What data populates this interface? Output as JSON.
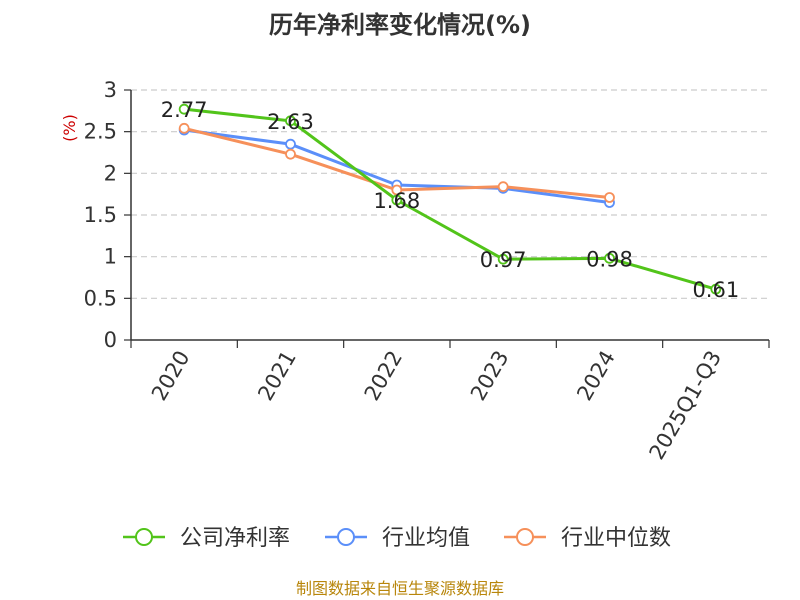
{
  "chart_data": {
    "type": "line",
    "title": "历年净利率变化情况(%)",
    "ylabel": "(%)",
    "xlabel": "",
    "categories": [
      "2020",
      "2021",
      "2022",
      "2023",
      "2024",
      "2025Q1-Q3"
    ],
    "ylim": [
      0,
      3
    ],
    "yticks": [
      0,
      0.5,
      1,
      1.5,
      2,
      2.5,
      3
    ],
    "ytick_labels": [
      "0",
      "0.5",
      "1",
      "1.5",
      "2",
      "2.5",
      "3"
    ],
    "grid": true,
    "legend_position": "bottom",
    "series": [
      {
        "name": "公司净利率",
        "color": "#52c41a",
        "values": [
          2.77,
          2.63,
          1.68,
          0.97,
          0.98,
          0.61
        ],
        "data_labels": [
          "2.77",
          "2.63",
          "1.68",
          "0.97",
          "0.98",
          "0.61"
        ]
      },
      {
        "name": "行业均值",
        "color": "#5b8ff9",
        "values": [
          2.52,
          2.35,
          1.86,
          1.82,
          1.65,
          null
        ]
      },
      {
        "name": "行业中位数",
        "color": "#f6905a",
        "values": [
          2.54,
          2.23,
          1.8,
          1.84,
          1.71,
          null
        ]
      }
    ]
  },
  "source": "制图数据来自恒生聚源数据库"
}
